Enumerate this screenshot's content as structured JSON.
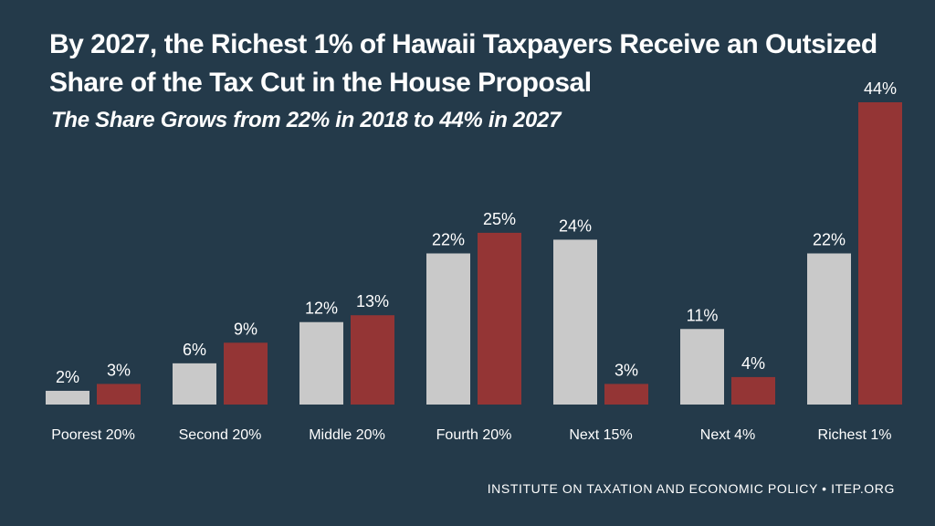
{
  "colors": {
    "background": "#243a4a",
    "series_2018": "#c9c9c9",
    "series_2027": "#943535",
    "text": "#ffffff"
  },
  "title": "By 2027, the Richest 1% of Hawaii Taxpayers Receive an Outsized Share of the Tax Cut in the House Proposal",
  "subtitle": "The Share Grows from 22% in 2018 to 44% in 2027",
  "footer": "INSTITUTE ON TAXATION AND ECONOMIC POLICY • ITEP.ORG",
  "chart_data": {
    "type": "bar",
    "categories": [
      "Poorest 20%",
      "Second 20%",
      "Middle 20%",
      "Fourth 20%",
      "Next 15%",
      "Next 4%",
      "Richest 1%"
    ],
    "series": [
      {
        "values": [
          2,
          6,
          12,
          22,
          24,
          11,
          22
        ],
        "labels": [
          "2%",
          "6%",
          "12%",
          "22%",
          "24%",
          "11%",
          "22%"
        ]
      },
      {
        "values": [
          3,
          9,
          13,
          25,
          3,
          4,
          44
        ],
        "labels": [
          "3%",
          "9%",
          "13%",
          "25%",
          "3%",
          "4%",
          "44%"
        ]
      }
    ],
    "ylim": [
      0,
      44
    ],
    "grid": false,
    "legend": "none"
  }
}
